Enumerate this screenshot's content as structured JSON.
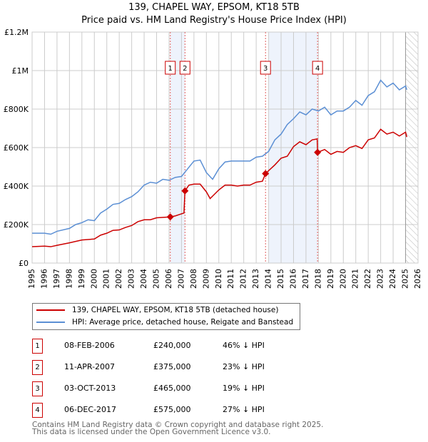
{
  "chart_data": {
    "type": "line",
    "title": "139, CHAPEL WAY, EPSOM, KT18 5TB",
    "subtitle": "Price paid vs. HM Land Registry's House Price Index (HPI)",
    "xlim": [
      1995,
      2026
    ],
    "ylim": [
      0,
      1200000
    ],
    "yticks": [
      {
        "v": 0,
        "label": "£0"
      },
      {
        "v": 200000,
        "label": "£200K"
      },
      {
        "v": 400000,
        "label": "£400K"
      },
      {
        "v": 600000,
        "label": "£600K"
      },
      {
        "v": 800000,
        "label": "£800K"
      },
      {
        "v": 1000000,
        "label": "£1M"
      },
      {
        "v": 1200000,
        "label": "£1.2M"
      }
    ],
    "xticks": [
      "1995",
      "1996",
      "1997",
      "1998",
      "1999",
      "2000",
      "2001",
      "2002",
      "2003",
      "2004",
      "2005",
      "2006",
      "2007",
      "2008",
      "2009",
      "2010",
      "2011",
      "2012",
      "2013",
      "2014",
      "2015",
      "2016",
      "2017",
      "2018",
      "2019",
      "2020",
      "2021",
      "2022",
      "2023",
      "2024",
      "2025",
      "2026"
    ],
    "grid": true,
    "shaded_ranges": [
      [
        2006.1,
        2007.28
      ],
      [
        2014.0,
        2017.93
      ]
    ],
    "forecast_hatch_from": 2025.0,
    "series": [
      {
        "name": "139, CHAPEL WAY, EPSOM, KT18 5TB (detached house)",
        "color": "#cc0000",
        "x": [
          1995,
          1996,
          1996.5,
          1997,
          1998,
          1999,
          2000,
          2000.5,
          2001,
          2001.5,
          2002,
          2002.5,
          2003,
          2003.5,
          2004,
          2004.5,
          2005,
          2006.1,
          2006.5,
          2007.2,
          2007.28,
          2007.6,
          2008,
          2008.5,
          2009,
          2009.3,
          2010,
          2010.5,
          2011,
          2011.5,
          2012,
          2012.5,
          2013,
          2013.5,
          2013.75,
          2014.5,
          2015,
          2015.5,
          2016,
          2016.5,
          2017,
          2017.5,
          2017.9,
          2017.93,
          2018.5,
          2019,
          2019.5,
          2020,
          2020.5,
          2021,
          2021.5,
          2022,
          2022.5,
          2023,
          2023.5,
          2024,
          2024.5,
          2025,
          2025.1
        ],
        "y": [
          85000,
          88000,
          85000,
          92000,
          105000,
          120000,
          125000,
          145000,
          155000,
          170000,
          172000,
          185000,
          195000,
          215000,
          225000,
          225000,
          235000,
          240000,
          245000,
          260000,
          375000,
          405000,
          410000,
          410000,
          370000,
          335000,
          380000,
          405000,
          405000,
          400000,
          405000,
          405000,
          420000,
          425000,
          465000,
          510000,
          545000,
          555000,
          605000,
          630000,
          615000,
          640000,
          645000,
          575000,
          590000,
          565000,
          580000,
          575000,
          600000,
          610000,
          595000,
          640000,
          650000,
          695000,
          670000,
          680000,
          660000,
          680000,
          655000
        ]
      },
      {
        "name": "HPI: Average price, detached house, Reigate and Banstead",
        "color": "#5b8fd4",
        "x": [
          1995,
          1996,
          1996.5,
          1997,
          1998,
          1998.5,
          1999,
          1999.5,
          2000,
          2000.5,
          2001,
          2001.5,
          2002,
          2002.5,
          2003,
          2003.5,
          2004,
          2004.5,
          2005,
          2005.5,
          2006,
          2006.5,
          2007,
          2007.5,
          2008,
          2008.5,
          2009,
          2009.5,
          2010,
          2010.5,
          2011,
          2011.5,
          2012,
          2012.5,
          2013,
          2013.5,
          2014,
          2014.5,
          2015,
          2015.5,
          2016,
          2016.5,
          2017,
          2017.5,
          2018,
          2018.5,
          2019,
          2019.5,
          2020,
          2020.5,
          2021,
          2021.5,
          2022,
          2022.5,
          2023,
          2023.5,
          2024,
          2024.5,
          2025,
          2025.1
        ],
        "y": [
          155000,
          155000,
          150000,
          165000,
          180000,
          200000,
          210000,
          225000,
          220000,
          260000,
          280000,
          305000,
          310000,
          330000,
          345000,
          370000,
          405000,
          420000,
          415000,
          435000,
          430000,
          445000,
          450000,
          490000,
          530000,
          535000,
          470000,
          435000,
          490000,
          525000,
          530000,
          530000,
          530000,
          530000,
          550000,
          555000,
          580000,
          640000,
          670000,
          720000,
          750000,
          785000,
          770000,
          800000,
          790000,
          810000,
          770000,
          790000,
          790000,
          810000,
          845000,
          820000,
          870000,
          890000,
          950000,
          915000,
          935000,
          900000,
          920000,
          900000
        ]
      }
    ],
    "sales": [
      {
        "n": "1",
        "date": "08-FEB-2006",
        "x": 2006.1,
        "price": "£240,000",
        "v": 240000,
        "hpi": "46% ↓ HPI"
      },
      {
        "n": "2",
        "date": "11-APR-2007",
        "x": 2007.28,
        "price": "£375,000",
        "v": 375000,
        "hpi": "23% ↓ HPI"
      },
      {
        "n": "3",
        "date": "03-OCT-2013",
        "x": 2013.75,
        "price": "£465,000",
        "v": 465000,
        "hpi": "19% ↓ HPI"
      },
      {
        "n": "4",
        "date": "06-DEC-2017",
        "x": 2017.93,
        "price": "£575,000",
        "v": 575000,
        "hpi": "27% ↓ HPI"
      }
    ]
  },
  "footer": {
    "line1": "Contains HM Land Registry data © Crown copyright and database right 2025.",
    "line2": "This data is licensed under the Open Government Licence v3.0."
  }
}
